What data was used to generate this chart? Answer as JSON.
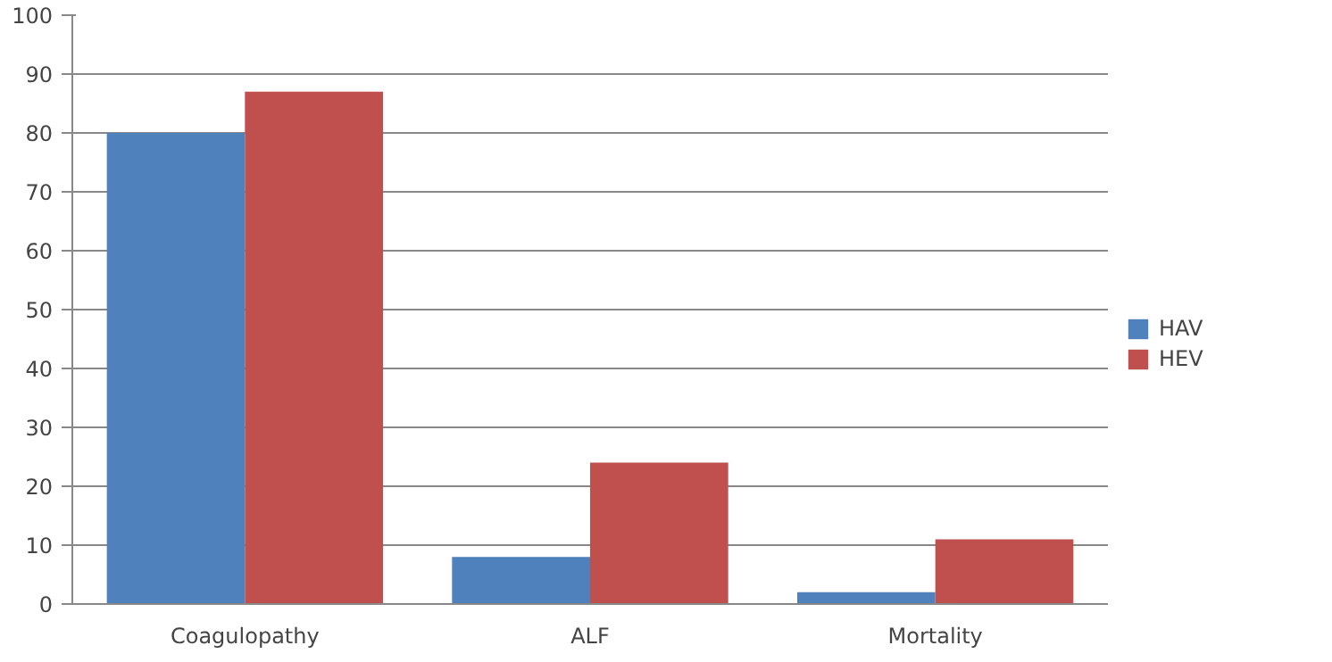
{
  "chart_data": {
    "type": "bar",
    "categories": [
      "Coagulopathy",
      "ALF",
      "Mortality"
    ],
    "series": [
      {
        "name": "HAV",
        "color": "#4f81bd",
        "values": [
          80,
          8,
          2
        ]
      },
      {
        "name": "HEV",
        "color": "#c0504d",
        "values": [
          87,
          24,
          11
        ]
      }
    ],
    "ylim": [
      0,
      100
    ],
    "yticks": [
      0,
      10,
      20,
      30,
      40,
      50,
      60,
      70,
      80,
      90,
      100
    ],
    "grid": "y",
    "legend": "right"
  }
}
